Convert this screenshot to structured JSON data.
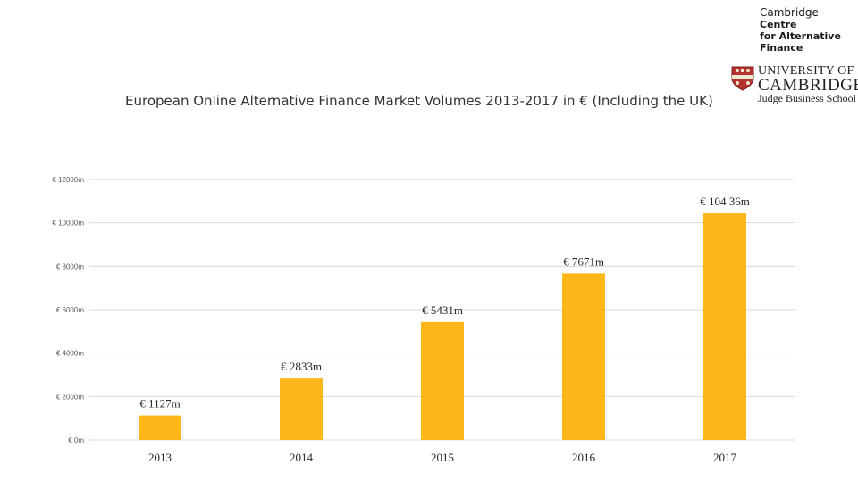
{
  "logo": {
    "centre_line1": "Cambridge",
    "centre_line2": "Centre",
    "centre_line3": "for Alternative",
    "centre_line4": "Finance",
    "university_line1": "UNIVERSITY OF",
    "university_line2": "CAMBRIDGE",
    "university_line3": "Judge Business School",
    "shield_icon": "university-shield-icon"
  },
  "chart_data": {
    "type": "bar",
    "title": "European Online Alternative Finance Market Volumes 2013-2017 in € (Including the UK)",
    "xlabel": "",
    "ylabel": "",
    "categories": [
      "2013",
      "2014",
      "2015",
      "2016",
      "2017"
    ],
    "values": [
      1127,
      2833,
      5431,
      7671,
      10436
    ],
    "data_labels": [
      "€ 1127m",
      "€ 2833m",
      "€ 5431m",
      "€ 7671m",
      "€ 104 36m"
    ],
    "ylim": [
      0,
      12000
    ],
    "yticks": [
      0,
      2000,
      4000,
      6000,
      8000,
      10000,
      12000
    ],
    "ytick_labels": [
      "€ 0m",
      "€ 2000m",
      "€ 4000m",
      "€ 6000m",
      "€ 8000m",
      "€ 10000m",
      "€ 12000m"
    ],
    "grid": true,
    "legend": "none",
    "colors": {
      "bar": "#FDB71A",
      "grid": "#d9d9d9",
      "tick_text": "#595959",
      "label_text": "#262626"
    }
  }
}
